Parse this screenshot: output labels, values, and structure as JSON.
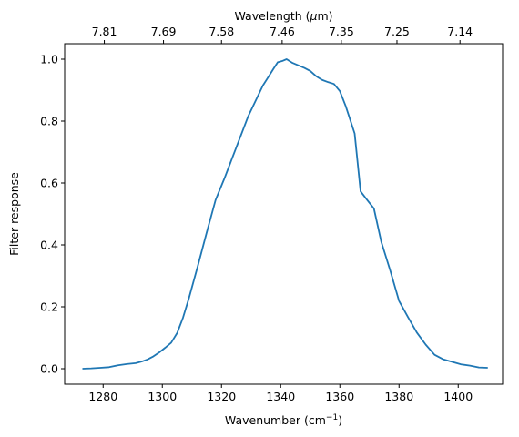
{
  "chart_data": {
    "type": "line",
    "xlabel": "Wavenumber (cm",
    "xlabel_sup": "−1",
    "xlabel_end": ")",
    "ylabel": "Filter response",
    "top_xlabel": "Wavelength (",
    "top_xlabel_mu": "μ",
    "top_xlabel_end": "m)",
    "xlim": [
      1267,
      1415
    ],
    "ylim": [
      -0.05,
      1.05
    ],
    "x_ticks": [
      1280,
      1300,
      1320,
      1340,
      1360,
      1380,
      1400
    ],
    "x_tick_labels": [
      "1280",
      "1300",
      "1320",
      "1340",
      "1360",
      "1380",
      "1400"
    ],
    "y_ticks": [
      0.0,
      0.2,
      0.4,
      0.6,
      0.8,
      1.0
    ],
    "y_tick_labels": [
      "0.0",
      "0.2",
      "0.4",
      "0.6",
      "0.8",
      "1.0"
    ],
    "top_ticks": [
      1280.4,
      1300.4,
      1320.0,
      1340.5,
      1360.5,
      1379.3,
      1400.6
    ],
    "top_tick_labels": [
      "7.81",
      "7.69",
      "7.58",
      "7.46",
      "7.35",
      "7.25",
      "7.14"
    ],
    "line_color": "#1f77b4",
    "series": [
      {
        "x": [
          1273,
          1276,
          1279,
          1282,
          1285,
          1288,
          1291,
          1293,
          1295,
          1297,
          1299,
          1301,
          1303,
          1305,
          1307,
          1309,
          1312,
          1315,
          1318,
          1321,
          1325,
          1329,
          1332,
          1334,
          1336,
          1337.5,
          1339,
          1340.5,
          1342,
          1344,
          1346,
          1348,
          1350,
          1352,
          1354,
          1356,
          1358,
          1360,
          1362,
          1365,
          1367,
          1369,
          1371.5,
          1374,
          1377,
          1380,
          1383,
          1386,
          1389,
          1392,
          1395,
          1398,
          1401,
          1404,
          1407,
          1410
        ],
        "y": [
          0.0,
          0.001,
          0.003,
          0.005,
          0.011,
          0.015,
          0.018,
          0.023,
          0.03,
          0.04,
          0.053,
          0.068,
          0.084,
          0.115,
          0.165,
          0.228,
          0.332,
          0.44,
          0.545,
          0.615,
          0.715,
          0.815,
          0.875,
          0.915,
          0.945,
          0.968,
          0.99,
          0.994,
          1.0,
          0.988,
          0.98,
          0.972,
          0.962,
          0.945,
          0.933,
          0.926,
          0.92,
          0.897,
          0.848,
          0.76,
          0.573,
          0.548,
          0.518,
          0.41,
          0.318,
          0.219,
          0.167,
          0.117,
          0.078,
          0.045,
          0.03,
          0.022,
          0.014,
          0.01,
          0.004,
          0.003
        ]
      }
    ]
  }
}
